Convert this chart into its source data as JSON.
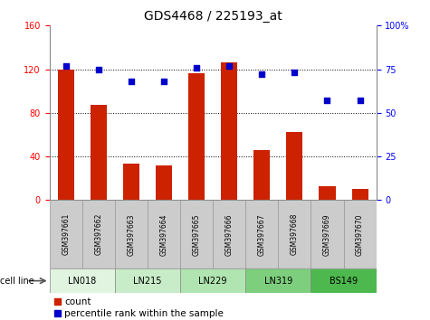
{
  "title": "GDS4468 / 225193_at",
  "samples": [
    "GSM397661",
    "GSM397662",
    "GSM397663",
    "GSM397664",
    "GSM397665",
    "GSM397666",
    "GSM397667",
    "GSM397668",
    "GSM397669",
    "GSM397670"
  ],
  "counts": [
    120,
    87,
    33,
    32,
    116,
    126,
    46,
    62,
    13,
    10
  ],
  "percentiles": [
    77,
    75,
    68,
    68,
    76,
    77,
    72,
    73,
    57,
    57
  ],
  "cell_lines": [
    {
      "name": "LN018",
      "start": 0,
      "end": 2,
      "color": "#e0f4e0"
    },
    {
      "name": "LN215",
      "start": 2,
      "end": 4,
      "color": "#c8ecc8"
    },
    {
      "name": "LN229",
      "start": 4,
      "end": 6,
      "color": "#b0e4b0"
    },
    {
      "name": "LN319",
      "start": 6,
      "end": 8,
      "color": "#7dcf7d"
    },
    {
      "name": "BS149",
      "start": 8,
      "end": 10,
      "color": "#4db84d"
    }
  ],
  "bar_color": "#cc2200",
  "dot_color": "#0000cc",
  "left_ylim": [
    0,
    160
  ],
  "right_ylim": [
    0,
    100
  ],
  "left_yticks": [
    0,
    40,
    80,
    120,
    160
  ],
  "right_yticks": [
    0,
    25,
    50,
    75,
    100
  ],
  "grid_lines": [
    40,
    80,
    120
  ],
  "title_fontsize": 10,
  "tick_fontsize": 7,
  "sample_fontsize": 5.5,
  "cellline_fontsize": 7,
  "legend_fontsize": 7.5
}
